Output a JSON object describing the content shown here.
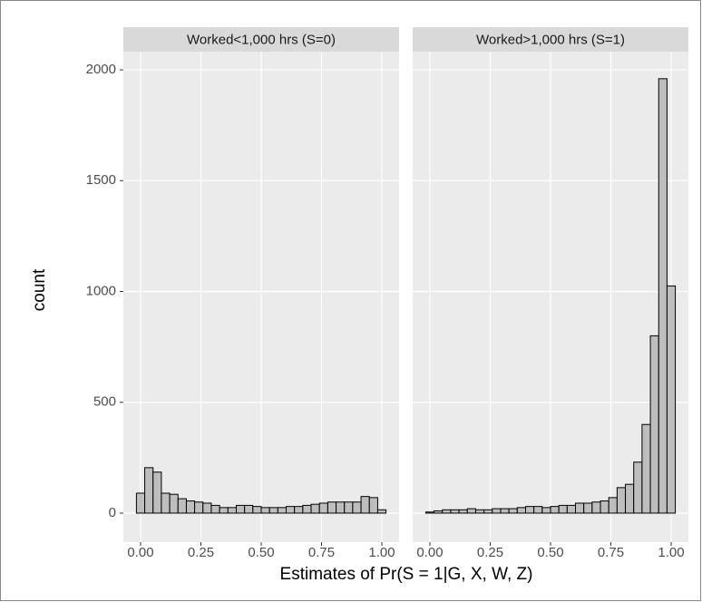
{
  "chart_data": [
    {
      "type": "histogram",
      "title": "Worked<1,000 hrs (S=0)",
      "xlabel": "Estimates of Pr(S = 1|G, X, W, Z)",
      "ylabel": "count",
      "bins": [
        -0.0172,
        0.0172,
        0.0517,
        0.0862,
        0.1207,
        0.1552,
        0.1897,
        0.2241,
        0.2586,
        0.2931,
        0.3276,
        0.3621,
        0.3966,
        0.431,
        0.4655,
        0.5,
        0.5345,
        0.569,
        0.6034,
        0.6379,
        0.6724,
        0.7069,
        0.7414,
        0.7759,
        0.8103,
        0.8448,
        0.8793,
        0.9138,
        0.9483,
        0.9828,
        1.0172
      ],
      "values": [
        90,
        205,
        185,
        90,
        85,
        65,
        55,
        50,
        45,
        35,
        25,
        25,
        35,
        35,
        30,
        25,
        25,
        25,
        30,
        30,
        35,
        40,
        45,
        50,
        50,
        50,
        50,
        75,
        70,
        15
      ],
      "color": "#bebebe",
      "xlim": [
        -0.0714,
        1.0714
      ],
      "ylim": [
        -131,
        2082
      ],
      "xticks": [
        {
          "value": 0,
          "label": "0.00"
        },
        {
          "value": 0.25,
          "label": "0.25"
        },
        {
          "value": 0.5,
          "label": "0.50"
        },
        {
          "value": 0.75,
          "label": "0.75"
        },
        {
          "value": 1,
          "label": "1.00"
        }
      ],
      "yticks": [
        0,
        500,
        1000,
        1500,
        2000
      ],
      "grid": true
    },
    {
      "type": "histogram",
      "title": "Worked>1,000 hrs (S=1)",
      "bins": [
        -0.0172,
        0.0172,
        0.0517,
        0.0862,
        0.1207,
        0.1552,
        0.1897,
        0.2241,
        0.2586,
        0.2931,
        0.3276,
        0.3621,
        0.3966,
        0.431,
        0.4655,
        0.5,
        0.5345,
        0.569,
        0.6034,
        0.6379,
        0.6724,
        0.7069,
        0.7414,
        0.7759,
        0.8103,
        0.8448,
        0.8793,
        0.9138,
        0.9483,
        0.9828,
        1.0172
      ],
      "values": [
        5,
        10,
        15,
        15,
        15,
        20,
        15,
        15,
        20,
        20,
        20,
        25,
        30,
        30,
        25,
        30,
        35,
        35,
        45,
        45,
        50,
        55,
        70,
        115,
        130,
        230,
        400,
        800,
        1960,
        1025
      ],
      "color": "#bebebe",
      "xlim": [
        -0.0714,
        1.0714
      ],
      "ylim": [
        -131,
        2082
      ],
      "xticks": [
        {
          "value": 0,
          "label": "0.00"
        },
        {
          "value": 0.25,
          "label": "0.25"
        },
        {
          "value": 0.5,
          "label": "0.50"
        },
        {
          "value": 0.75,
          "label": "0.75"
        },
        {
          "value": 1,
          "label": "1.00"
        }
      ],
      "yticks": [
        0,
        500,
        1000,
        1500,
        2000
      ],
      "grid": true
    }
  ]
}
